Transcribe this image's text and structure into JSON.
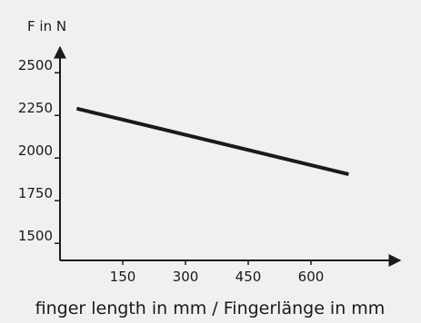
{
  "chart_data": {
    "type": "line",
    "ylabel": "F in N",
    "xlabel": "finger length in mm / Fingerlänge in mm",
    "x_ticks": [
      150,
      300,
      450,
      600
    ],
    "y_ticks": [
      1500,
      1750,
      2000,
      2250,
      2500
    ],
    "xlim": [
      0,
      800
    ],
    "ylim": [
      1400,
      2650
    ],
    "grid": false,
    "series": [
      {
        "x": [
          40,
          690
        ],
        "y": [
          2290,
          1905
        ],
        "color": "#1a1a1a"
      }
    ]
  }
}
